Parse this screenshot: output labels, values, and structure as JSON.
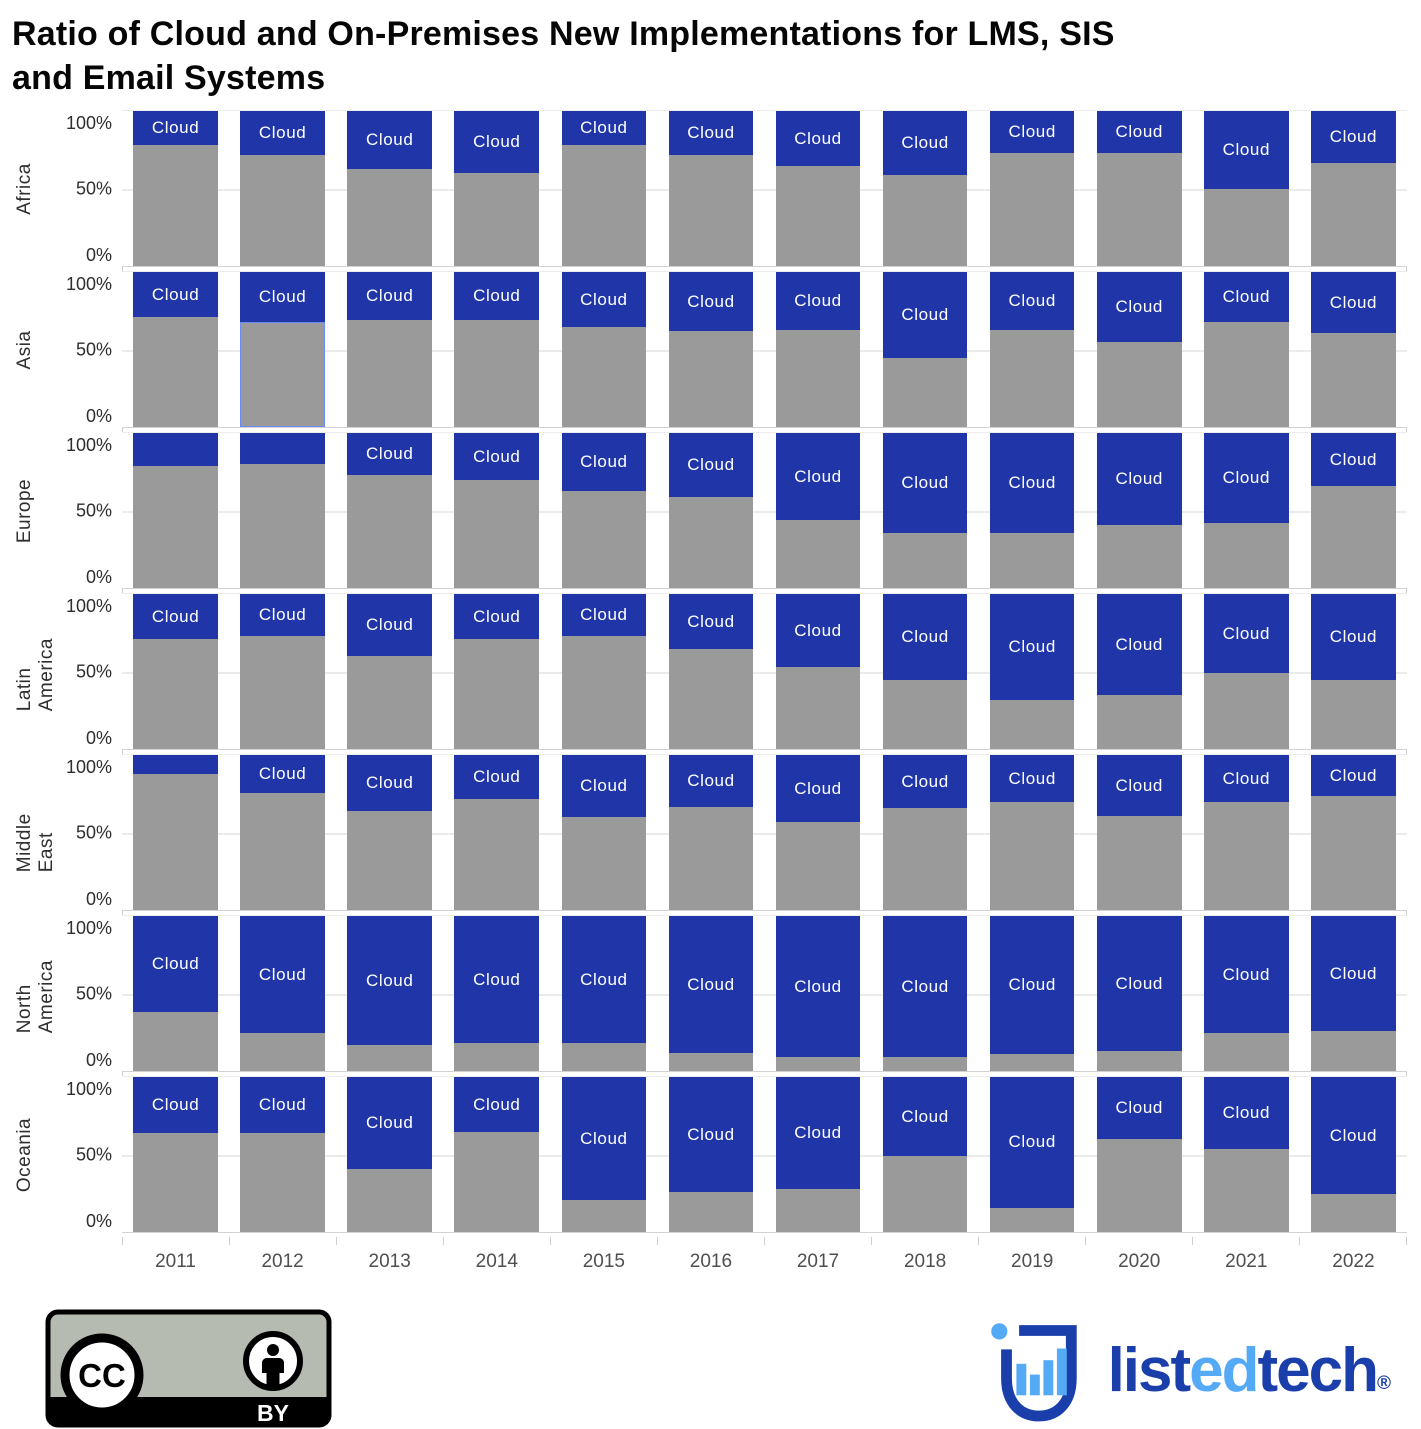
{
  "header": {
    "title_line1": "Ratio of Cloud and On-Premises New Implementations for LMS, SIS",
    "title_line2": "and Email Systems"
  },
  "chart_data": {
    "type": "bar",
    "variant": "100-percent-stacked, faceted by region (rows) x year (columns)",
    "x": [
      "2011",
      "2012",
      "2013",
      "2014",
      "2015",
      "2016",
      "2017",
      "2018",
      "2019",
      "2020",
      "2021",
      "2022"
    ],
    "series_names": [
      "Cloud",
      "On-Premises"
    ],
    "segment_label": "Cloud",
    "label_min_pct": 22,
    "yticks": [
      "100%",
      "50%",
      "0%"
    ],
    "ylim": [
      0,
      100
    ],
    "grid": "horizontal gridlines at 0%, 50%, 100%",
    "legend": "none (cloud segments labeled inline)",
    "facets": [
      {
        "region": "Africa",
        "cloud_pct": [
          22,
          28,
          37,
          40,
          22,
          28,
          35,
          41,
          27,
          27,
          50,
          33
        ]
      },
      {
        "region": "Asia",
        "cloud_pct": [
          29,
          32,
          31,
          31,
          35,
          38,
          37,
          55,
          37,
          45,
          32,
          39
        ]
      },
      {
        "region": "Europe",
        "cloud_pct": [
          21,
          20,
          27,
          30,
          37,
          41,
          56,
          64,
          64,
          59,
          58,
          34
        ]
      },
      {
        "region": "Latin America",
        "cloud_pct": [
          29,
          27,
          40,
          29,
          27,
          35,
          47,
          55,
          68,
          65,
          51,
          55
        ]
      },
      {
        "region": "Middle East",
        "cloud_pct": [
          12,
          24,
          36,
          28,
          40,
          33,
          43,
          34,
          30,
          39,
          30,
          26
        ]
      },
      {
        "region": "North America",
        "cloud_pct": [
          62,
          75,
          83,
          82,
          82,
          88,
          91,
          91,
          89,
          87,
          75,
          74
        ]
      },
      {
        "region": "Oceania",
        "cloud_pct": [
          36,
          36,
          59,
          35,
          79,
          74,
          72,
          51,
          84,
          40,
          46,
          75
        ]
      }
    ],
    "highlight": {
      "region": "Asia",
      "year": "2012",
      "segment": "On-Premises",
      "style": "thin blue selection outline"
    }
  },
  "colors": {
    "cloud": "#1f35a8",
    "on_premises": "#9a9a9a",
    "highlight_outline": "#6b8cf2",
    "gridline": "#ebebeb",
    "axis_line": "#cfcfcf",
    "tick_label": "#2e2e2e",
    "year_label": "#4f4f4f",
    "title": "#060606",
    "brand_dark_blue": "#1b3faa",
    "brand_light_blue": "#55aaf5"
  },
  "footer": {
    "license": {
      "badge_text": "BY",
      "cc_text": "CC"
    },
    "brand": {
      "part1": "list",
      "part2": "ed",
      "part3": "tech",
      "registered_mark": "®"
    }
  }
}
